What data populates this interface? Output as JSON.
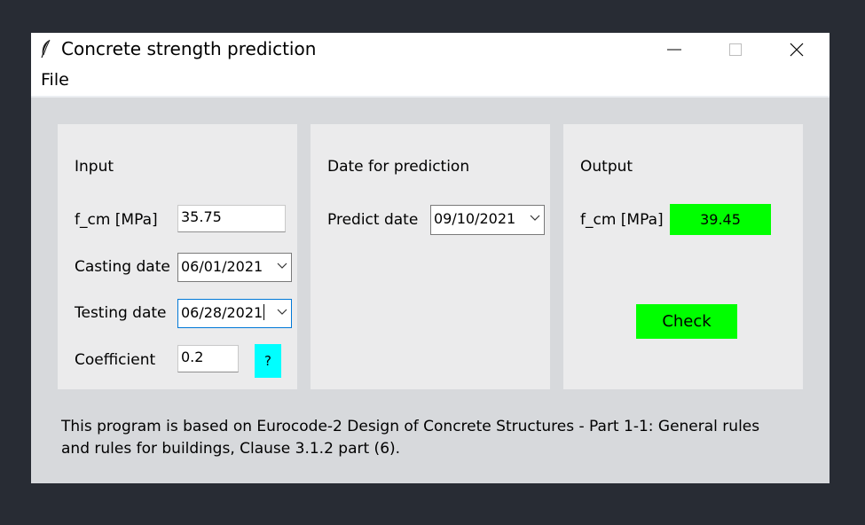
{
  "window": {
    "title": "Concrete strength prediction",
    "app_icon": "feather-icon",
    "controls": [
      "minimize-icon",
      "maximize-icon",
      "close-icon"
    ]
  },
  "menu": {
    "items": [
      {
        "label": "File"
      }
    ]
  },
  "input_panel": {
    "heading": "Input",
    "fcm_label": "f_cm [MPa]",
    "fcm_value": "35.75",
    "casting_label": "Casting date",
    "casting_value": "06/01/2021",
    "testing_label": "Testing date",
    "testing_value": "06/28/2021",
    "coefficient_label": "Coefficient",
    "coefficient_value": "0.2",
    "help_label": "?"
  },
  "prediction_panel": {
    "heading": "Date for prediction",
    "predict_label": "Predict date",
    "predict_value": "09/10/2021"
  },
  "output_panel": {
    "heading": "Output",
    "fcm_label": "f_cm [MPa]",
    "fcm_result": "39.45",
    "check_label": "Check"
  },
  "footnote": "This program is based on Eurocode-2 Design of Concrete Structures - Part 1-1: General rules and rules for buildings, Clause 3.1.2 part (6).",
  "colors": {
    "green_accent": "#00ff00",
    "cyan_accent": "#00ffff",
    "focus_border": "#0078d7"
  }
}
